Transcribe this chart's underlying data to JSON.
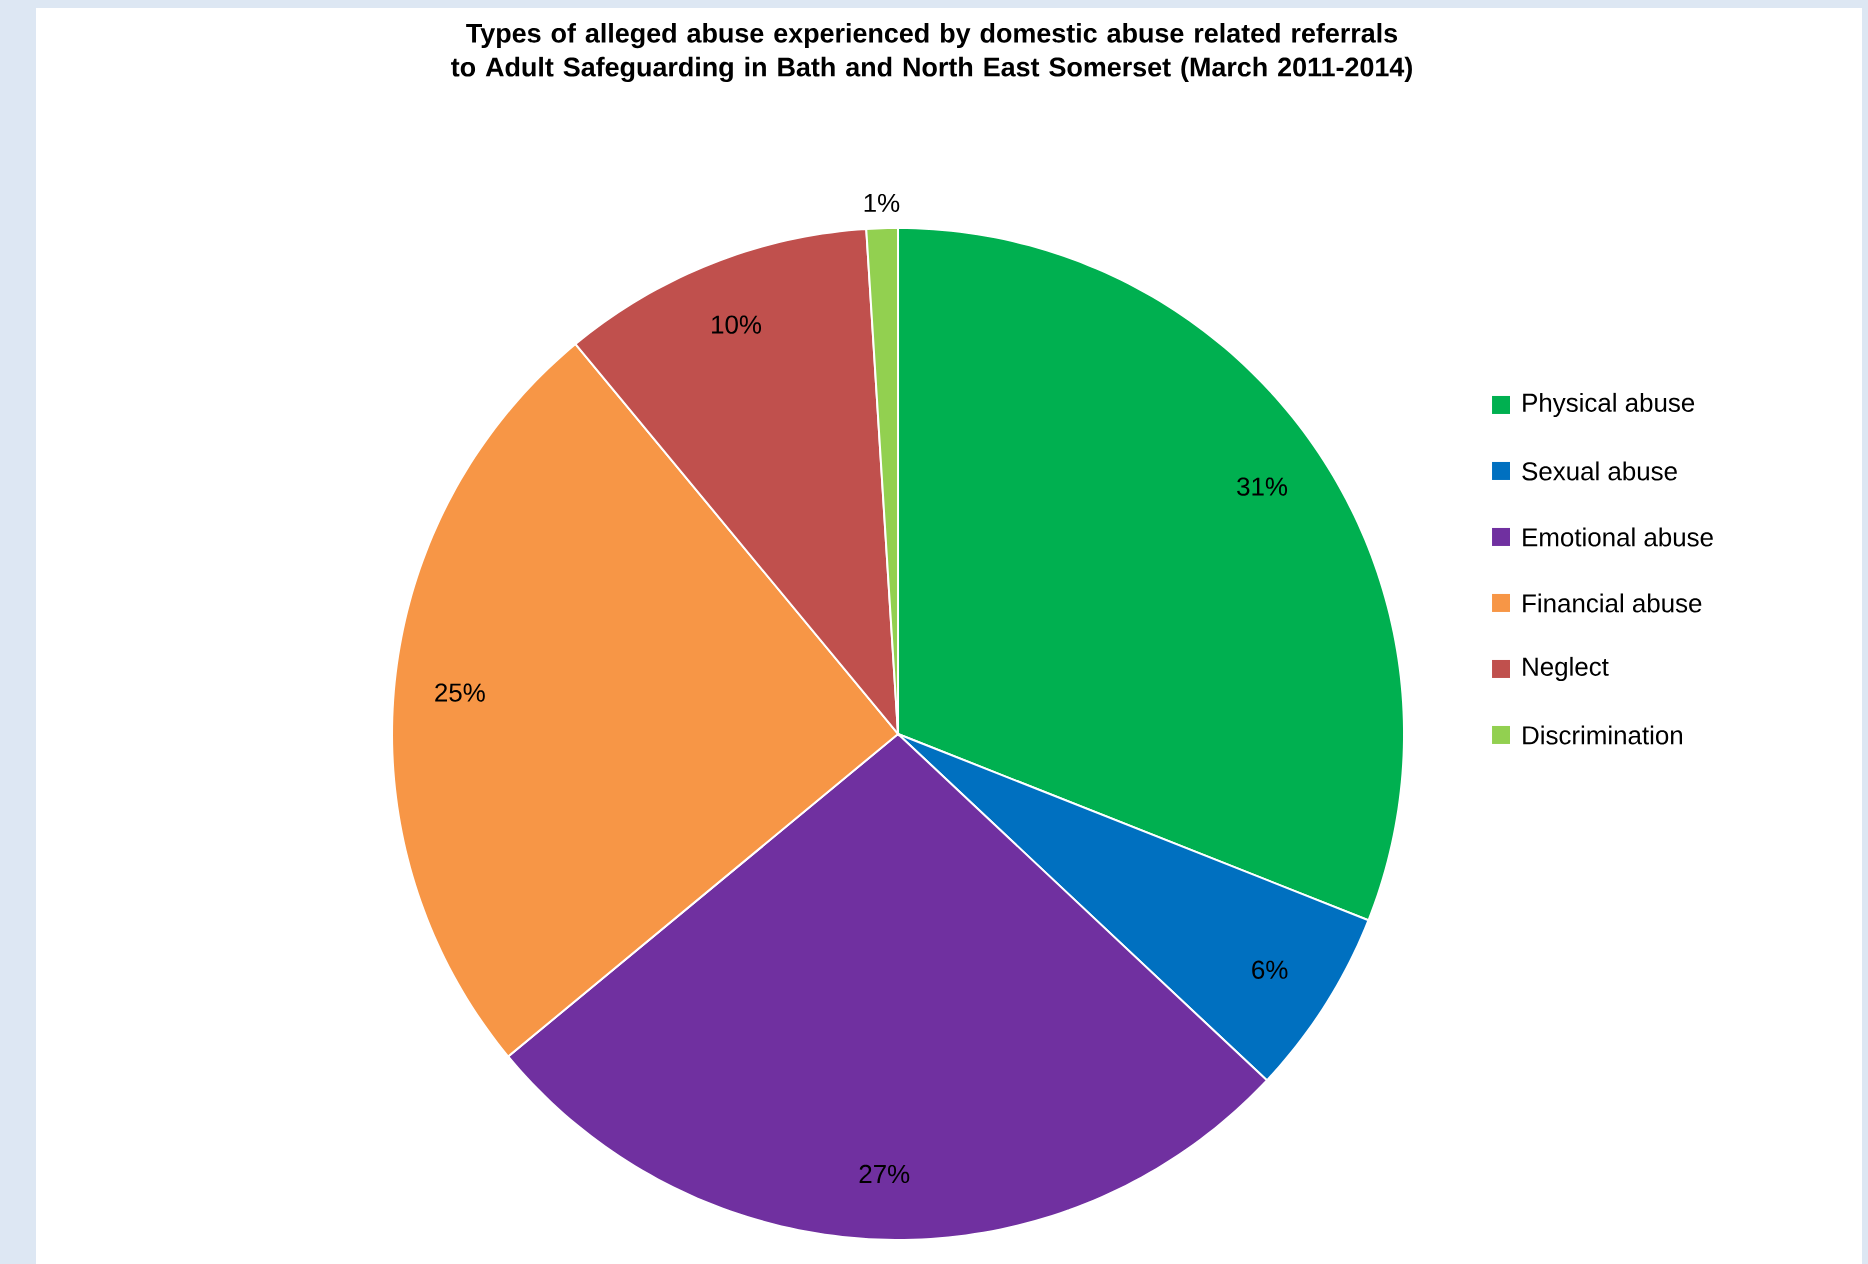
{
  "chart_data": {
    "type": "pie",
    "title": "Types of alleged abuse experienced by domestic abuse related referrals to Adult Safeguarding in Bath and North East Somerset (March 2011-2014)",
    "categories": [
      "Physical abuse",
      "Sexual abuse",
      "Emotional abuse",
      "Financial abuse",
      "Neglect",
      "Discrimination"
    ],
    "values": [
      31,
      6,
      27,
      25,
      10,
      1
    ],
    "colors": [
      "#00b050",
      "#0070c0",
      "#7030a0",
      "#f79646",
      "#c0504d",
      "#92d050"
    ],
    "value_labels": [
      "31%",
      "6%",
      "27%",
      "25%",
      "10%",
      "1%"
    ],
    "legend": "right"
  }
}
